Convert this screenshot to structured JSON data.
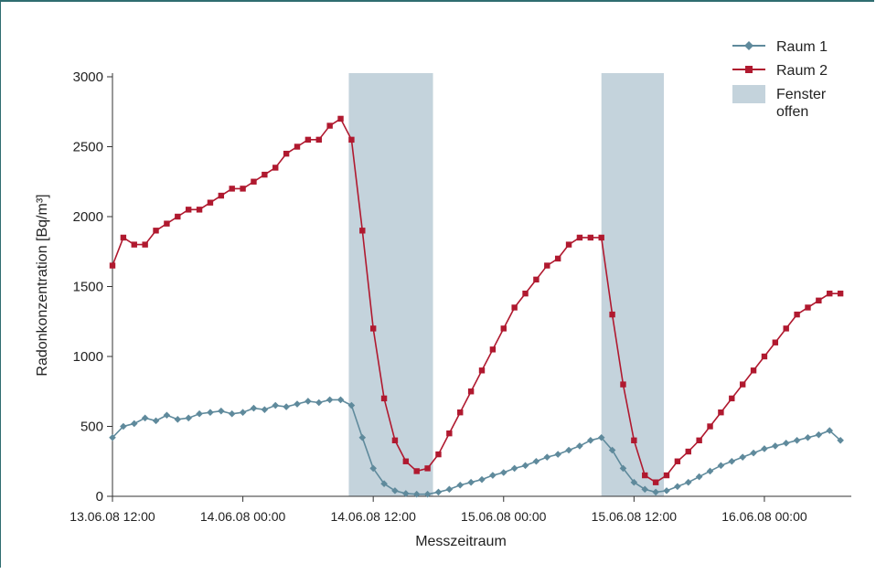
{
  "chart_data": {
    "type": "line",
    "xlabel": "Messzeitraum",
    "ylabel": "Radonkonzentration [Bq/m³]",
    "ylim": [
      0,
      3000
    ],
    "yticks": [
      0,
      500,
      1000,
      1500,
      2000,
      2500,
      3000
    ],
    "xlim": [
      "2008-06-13 12:00",
      "2008-06-16 08:00"
    ],
    "xticks": [
      {
        "t": "2008-06-13 12:00",
        "label": "13.06.08 12:00"
      },
      {
        "t": "2008-06-14 00:00",
        "label": "14.06.08 00:00"
      },
      {
        "t": "2008-06-14 12:00",
        "label": "14.06.08 12:00"
      },
      {
        "t": "2008-06-15 00:00",
        "label": "15.06.08 00:00"
      },
      {
        "t": "2008-06-15 12:00",
        "label": "15.06.08 12:00"
      },
      {
        "t": "2008-06-16 00:00",
        "label": "16.06.08 00:00"
      }
    ],
    "legend_position": "top-right",
    "shaded_regions": [
      {
        "name": "Fenster offen",
        "start": "2008-06-14 09:45",
        "end": "2008-06-14 17:30",
        "color": "#c4d3dc"
      },
      {
        "name": "Fenster offen",
        "start": "2008-06-15 09:00",
        "end": "2008-06-15 14:45",
        "color": "#c4d3dc"
      }
    ],
    "series": [
      {
        "name": "Raum 1",
        "color": "#5f8a9c",
        "marker": "diamond",
        "points": [
          [
            "2008-06-13 12:00",
            420
          ],
          [
            "2008-06-13 13:00",
            500
          ],
          [
            "2008-06-13 14:00",
            520
          ],
          [
            "2008-06-13 15:00",
            560
          ],
          [
            "2008-06-13 16:00",
            540
          ],
          [
            "2008-06-13 17:00",
            580
          ],
          [
            "2008-06-13 18:00",
            550
          ],
          [
            "2008-06-13 19:00",
            560
          ],
          [
            "2008-06-13 20:00",
            590
          ],
          [
            "2008-06-13 21:00",
            600
          ],
          [
            "2008-06-13 22:00",
            610
          ],
          [
            "2008-06-13 23:00",
            590
          ],
          [
            "2008-06-14 00:00",
            600
          ],
          [
            "2008-06-14 01:00",
            630
          ],
          [
            "2008-06-14 02:00",
            620
          ],
          [
            "2008-06-14 03:00",
            650
          ],
          [
            "2008-06-14 04:00",
            640
          ],
          [
            "2008-06-14 05:00",
            660
          ],
          [
            "2008-06-14 06:00",
            680
          ],
          [
            "2008-06-14 07:00",
            670
          ],
          [
            "2008-06-14 08:00",
            690
          ],
          [
            "2008-06-14 09:00",
            690
          ],
          [
            "2008-06-14 10:00",
            650
          ],
          [
            "2008-06-14 11:00",
            420
          ],
          [
            "2008-06-14 12:00",
            200
          ],
          [
            "2008-06-14 13:00",
            90
          ],
          [
            "2008-06-14 14:00",
            40
          ],
          [
            "2008-06-14 15:00",
            20
          ],
          [
            "2008-06-14 16:00",
            15
          ],
          [
            "2008-06-14 17:00",
            15
          ],
          [
            "2008-06-14 18:00",
            30
          ],
          [
            "2008-06-14 19:00",
            50
          ],
          [
            "2008-06-14 20:00",
            80
          ],
          [
            "2008-06-14 21:00",
            100
          ],
          [
            "2008-06-14 22:00",
            120
          ],
          [
            "2008-06-14 23:00",
            150
          ],
          [
            "2008-06-15 00:00",
            170
          ],
          [
            "2008-06-15 01:00",
            200
          ],
          [
            "2008-06-15 02:00",
            220
          ],
          [
            "2008-06-15 03:00",
            250
          ],
          [
            "2008-06-15 04:00",
            280
          ],
          [
            "2008-06-15 05:00",
            300
          ],
          [
            "2008-06-15 06:00",
            330
          ],
          [
            "2008-06-15 07:00",
            360
          ],
          [
            "2008-06-15 08:00",
            400
          ],
          [
            "2008-06-15 09:00",
            420
          ],
          [
            "2008-06-15 10:00",
            330
          ],
          [
            "2008-06-15 11:00",
            200
          ],
          [
            "2008-06-15 12:00",
            100
          ],
          [
            "2008-06-15 13:00",
            50
          ],
          [
            "2008-06-15 14:00",
            30
          ],
          [
            "2008-06-15 15:00",
            40
          ],
          [
            "2008-06-15 16:00",
            70
          ],
          [
            "2008-06-15 17:00",
            100
          ],
          [
            "2008-06-15 18:00",
            140
          ],
          [
            "2008-06-15 19:00",
            180
          ],
          [
            "2008-06-15 20:00",
            220
          ],
          [
            "2008-06-15 21:00",
            250
          ],
          [
            "2008-06-15 22:00",
            280
          ],
          [
            "2008-06-15 23:00",
            310
          ],
          [
            "2008-06-16 00:00",
            340
          ],
          [
            "2008-06-16 01:00",
            360
          ],
          [
            "2008-06-16 02:00",
            380
          ],
          [
            "2008-06-16 03:00",
            400
          ],
          [
            "2008-06-16 04:00",
            420
          ],
          [
            "2008-06-16 05:00",
            440
          ],
          [
            "2008-06-16 06:00",
            470
          ],
          [
            "2008-06-16 07:00",
            400
          ]
        ]
      },
      {
        "name": "Raum 2",
        "color": "#b0192f",
        "marker": "square",
        "points": [
          [
            "2008-06-13 12:00",
            1650
          ],
          [
            "2008-06-13 13:00",
            1850
          ],
          [
            "2008-06-13 14:00",
            1800
          ],
          [
            "2008-06-13 15:00",
            1800
          ],
          [
            "2008-06-13 16:00",
            1900
          ],
          [
            "2008-06-13 17:00",
            1950
          ],
          [
            "2008-06-13 18:00",
            2000
          ],
          [
            "2008-06-13 19:00",
            2050
          ],
          [
            "2008-06-13 20:00",
            2050
          ],
          [
            "2008-06-13 21:00",
            2100
          ],
          [
            "2008-06-13 22:00",
            2150
          ],
          [
            "2008-06-13 23:00",
            2200
          ],
          [
            "2008-06-14 00:00",
            2200
          ],
          [
            "2008-06-14 01:00",
            2250
          ],
          [
            "2008-06-14 02:00",
            2300
          ],
          [
            "2008-06-14 03:00",
            2350
          ],
          [
            "2008-06-14 04:00",
            2450
          ],
          [
            "2008-06-14 05:00",
            2500
          ],
          [
            "2008-06-14 06:00",
            2550
          ],
          [
            "2008-06-14 07:00",
            2550
          ],
          [
            "2008-06-14 08:00",
            2650
          ],
          [
            "2008-06-14 09:00",
            2700
          ],
          [
            "2008-06-14 10:00",
            2550
          ],
          [
            "2008-06-14 11:00",
            1900
          ],
          [
            "2008-06-14 12:00",
            1200
          ],
          [
            "2008-06-14 13:00",
            700
          ],
          [
            "2008-06-14 14:00",
            400
          ],
          [
            "2008-06-14 15:00",
            250
          ],
          [
            "2008-06-14 16:00",
            180
          ],
          [
            "2008-06-14 17:00",
            200
          ],
          [
            "2008-06-14 18:00",
            300
          ],
          [
            "2008-06-14 19:00",
            450
          ],
          [
            "2008-06-14 20:00",
            600
          ],
          [
            "2008-06-14 21:00",
            750
          ],
          [
            "2008-06-14 22:00",
            900
          ],
          [
            "2008-06-14 23:00",
            1050
          ],
          [
            "2008-06-15 00:00",
            1200
          ],
          [
            "2008-06-15 01:00",
            1350
          ],
          [
            "2008-06-15 02:00",
            1450
          ],
          [
            "2008-06-15 03:00",
            1550
          ],
          [
            "2008-06-15 04:00",
            1650
          ],
          [
            "2008-06-15 05:00",
            1700
          ],
          [
            "2008-06-15 06:00",
            1800
          ],
          [
            "2008-06-15 07:00",
            1850
          ],
          [
            "2008-06-15 08:00",
            1850
          ],
          [
            "2008-06-15 09:00",
            1850
          ],
          [
            "2008-06-15 10:00",
            1300
          ],
          [
            "2008-06-15 11:00",
            800
          ],
          [
            "2008-06-15 12:00",
            400
          ],
          [
            "2008-06-15 13:00",
            150
          ],
          [
            "2008-06-15 14:00",
            100
          ],
          [
            "2008-06-15 15:00",
            150
          ],
          [
            "2008-06-15 16:00",
            250
          ],
          [
            "2008-06-15 17:00",
            320
          ],
          [
            "2008-06-15 18:00",
            400
          ],
          [
            "2008-06-15 19:00",
            500
          ],
          [
            "2008-06-15 20:00",
            600
          ],
          [
            "2008-06-15 21:00",
            700
          ],
          [
            "2008-06-15 22:00",
            800
          ],
          [
            "2008-06-15 23:00",
            900
          ],
          [
            "2008-06-16 00:00",
            1000
          ],
          [
            "2008-06-16 01:00",
            1100
          ],
          [
            "2008-06-16 02:00",
            1200
          ],
          [
            "2008-06-16 03:00",
            1300
          ],
          [
            "2008-06-16 04:00",
            1350
          ],
          [
            "2008-06-16 05:00",
            1400
          ],
          [
            "2008-06-16 06:00",
            1450
          ],
          [
            "2008-06-16 07:00",
            1450
          ]
        ]
      }
    ],
    "legend": [
      {
        "label": "Raum 1",
        "kind": "line-diamond",
        "color": "#5f8a9c"
      },
      {
        "label": "Raum 2",
        "kind": "line-square",
        "color": "#b0192f"
      },
      {
        "label": "Fenster\noffen",
        "kind": "patch",
        "color": "#c4d3dc"
      }
    ]
  }
}
